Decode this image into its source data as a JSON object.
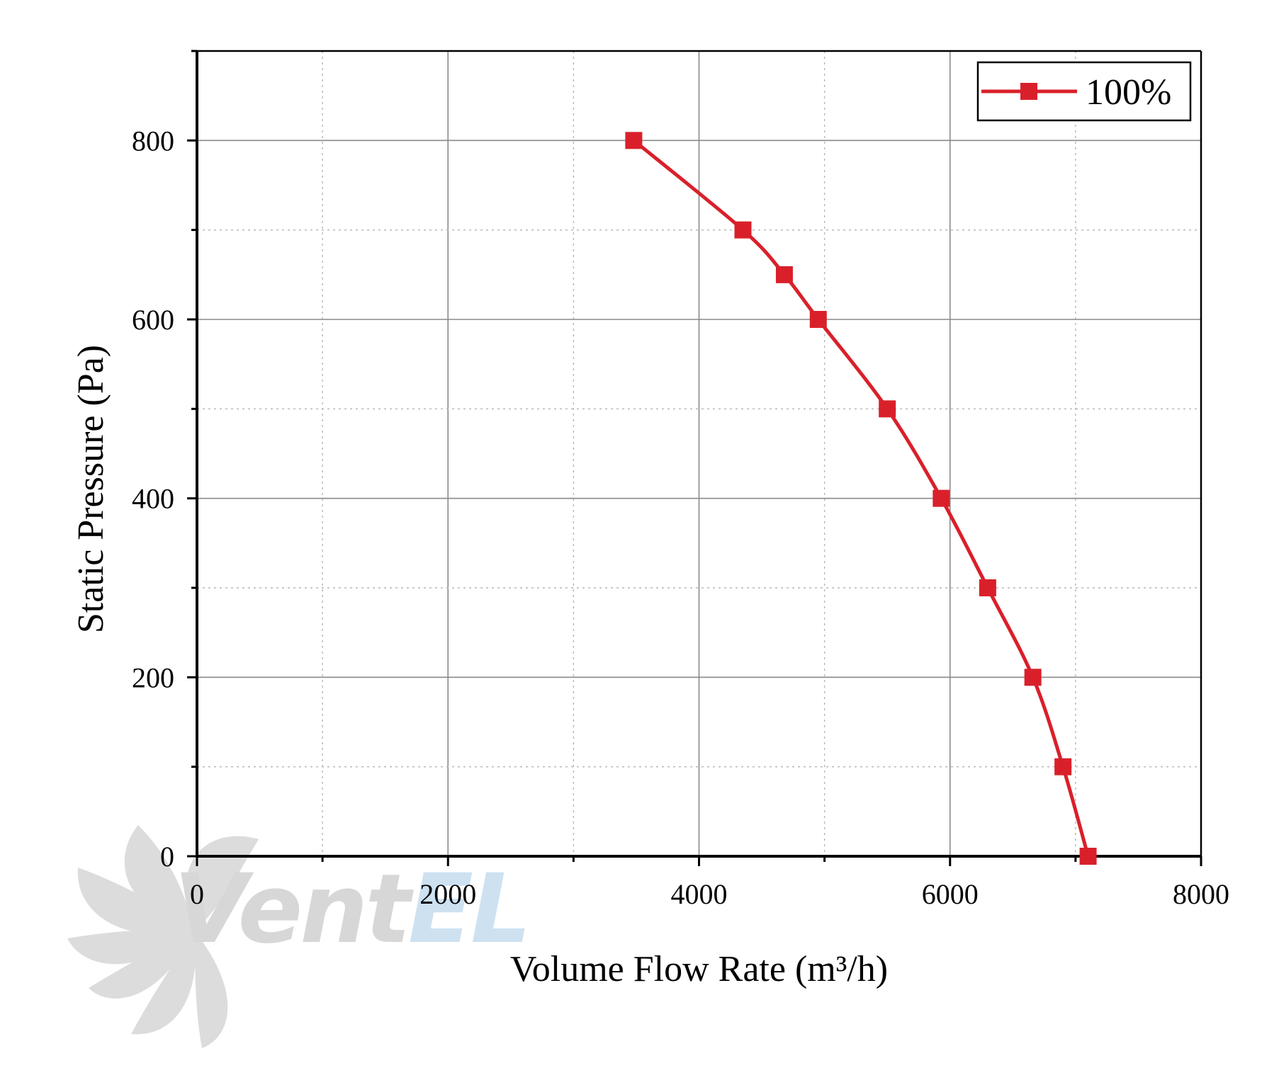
{
  "chart_data": {
    "type": "line",
    "xlabel": "Volume Flow Rate (m³/h)",
    "ylabel": "Static Pressure (Pa)",
    "xlim": [
      0,
      8000
    ],
    "ylim": [
      0,
      900
    ],
    "x_ticks": [
      0,
      2000,
      4000,
      6000,
      8000
    ],
    "y_ticks": [
      0,
      200,
      400,
      600,
      800
    ],
    "grid": true,
    "legend_position": "top-right",
    "series": [
      {
        "name": "100%",
        "color": "#d9202a",
        "marker": "square",
        "x": [
          3480,
          4350,
          4680,
          4950,
          5500,
          5930,
          6300,
          6660,
          6900,
          7100
        ],
        "y": [
          800,
          700,
          650,
          600,
          500,
          400,
          300,
          200,
          100,
          0
        ]
      }
    ]
  },
  "watermark": {
    "brand": "VentEL",
    "icon": "fan-icon"
  }
}
